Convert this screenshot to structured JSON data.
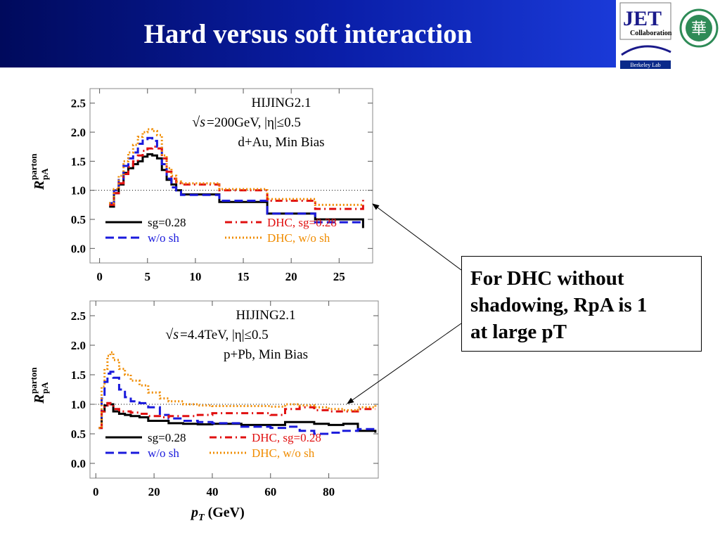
{
  "slide": {
    "title": "Hard versus soft interaction",
    "callout_lines": [
      "For DHC without",
      "shadowing, RpA is 1",
      "at large pT"
    ],
    "x_axis_title_main": "p",
    "x_axis_title_sub": "T",
    "x_axis_title_unit": " (GeV)",
    "y_axis_label": {
      "R": "R",
      "sup": "parton",
      "sub": "pA"
    },
    "logos": {
      "jet_name": "JET",
      "jet_sub": "Collaboration",
      "berkeley": "Berkeley Lab",
      "ccnu_char": "華"
    }
  },
  "colors": {
    "header_dark": "#000a5c",
    "black": "#000000",
    "blue": "#1a1adc",
    "red": "#e01010",
    "orange": "#f08c00"
  },
  "chart_data": [
    {
      "type": "line",
      "title_lines": [
        "HIJING2.1",
        "=200GeV, |η|≤0.5",
        "d+Au, Min Bias"
      ],
      "sqrt_symbol": "√s",
      "xlabel": "",
      "ylabel": "R_pA^parton",
      "xlim": [
        -1,
        28.5
      ],
      "ylim": [
        -0.25,
        2.75
      ],
      "x_ticks": [
        0,
        5,
        10,
        15,
        20,
        25
      ],
      "y_ticks": [
        0.0,
        0.5,
        1.0,
        1.5,
        2.0,
        2.5
      ],
      "y_tick_labels": [
        "0.0",
        "0.5",
        "1.0",
        "1.5",
        "2.0",
        "2.5"
      ],
      "reference_line": 1.0,
      "legend": [
        {
          "label": "sg=0.28",
          "color": "#000000",
          "style": "solid",
          "pos": "left-1"
        },
        {
          "label": "w/o sh",
          "color": "#1a1adc",
          "style": "dashed",
          "pos": "left-2"
        },
        {
          "label": "DHC, sg=0.28",
          "color": "#e01010",
          "style": "dashdot",
          "pos": "right-1"
        },
        {
          "label": "DHC, w/o sh",
          "color": "#f08c00",
          "style": "dotted",
          "pos": "right-2"
        }
      ],
      "series": [
        {
          "name": "sg=0.28",
          "color": "#000000",
          "style": "solid",
          "width": 3,
          "x": [
            1,
            1.5,
            2,
            2.5,
            3,
            3.5,
            4,
            4.5,
            5,
            5.5,
            6,
            6.5,
            7,
            7.5,
            8,
            8.5,
            10,
            12.5,
            17.5,
            22.5,
            27.5
          ],
          "y": [
            0.72,
            0.95,
            1.1,
            1.3,
            1.38,
            1.45,
            1.5,
            1.58,
            1.62,
            1.6,
            1.55,
            1.35,
            1.18,
            1.1,
            1.0,
            0.93,
            0.93,
            0.8,
            0.6,
            0.5,
            0.35
          ]
        },
        {
          "name": "w/o sh",
          "color": "#1a1adc",
          "style": "dashed",
          "width": 3,
          "x": [
            1,
            1.5,
            2,
            2.5,
            3,
            3.5,
            4,
            4.5,
            5,
            5.5,
            6,
            6.5,
            7,
            7.5,
            8,
            8.5,
            10,
            12.5,
            17.5,
            22.5,
            27.5
          ],
          "y": [
            0.78,
            1.0,
            1.2,
            1.42,
            1.55,
            1.65,
            1.8,
            1.88,
            1.9,
            1.85,
            1.75,
            1.45,
            1.2,
            1.05,
            0.98,
            0.92,
            0.92,
            0.82,
            0.6,
            0.45,
            0.42
          ]
        },
        {
          "name": "DHC, sg=0.28",
          "color": "#e01010",
          "style": "dashdot",
          "width": 3,
          "x": [
            1,
            1.5,
            2,
            2.5,
            3,
            3.5,
            4,
            4.5,
            5,
            5.5,
            6,
            6.5,
            7,
            7.5,
            8,
            8.5,
            10,
            12.5,
            17.5,
            22.5,
            27.5
          ],
          "y": [
            0.75,
            0.95,
            1.12,
            1.28,
            1.4,
            1.5,
            1.6,
            1.68,
            1.72,
            1.75,
            1.72,
            1.55,
            1.32,
            1.2,
            1.12,
            1.1,
            1.1,
            1.0,
            0.82,
            0.68,
            0.88
          ]
        },
        {
          "name": "DHC, w/o sh",
          "color": "#f08c00",
          "style": "dotted",
          "width": 3,
          "x": [
            1,
            1.5,
            2,
            2.5,
            3,
            3.5,
            4,
            4.5,
            5,
            5.5,
            6,
            6.5,
            7,
            7.5,
            8,
            8.5,
            10,
            12.5,
            17.5,
            22.5,
            27.5
          ],
          "y": [
            0.78,
            1.02,
            1.25,
            1.5,
            1.65,
            1.78,
            1.92,
            2.0,
            2.05,
            2.02,
            1.95,
            1.6,
            1.38,
            1.25,
            1.15,
            1.12,
            1.12,
            1.02,
            0.85,
            0.75,
            0.75
          ]
        }
      ]
    },
    {
      "type": "line",
      "title_lines": [
        "HIJING2.1",
        "=4.4TeV, |η|≤0.5",
        "p+Pb, Min Bias"
      ],
      "sqrt_symbol": "√s",
      "xlabel": "p_T (GeV)",
      "ylabel": "R_pA^parton",
      "xlim": [
        -2,
        97
      ],
      "ylim": [
        -0.25,
        2.75
      ],
      "x_ticks": [
        0,
        20,
        40,
        60,
        80
      ],
      "y_ticks": [
        0.0,
        0.5,
        1.0,
        1.5,
        2.0,
        2.5
      ],
      "y_tick_labels": [
        "0.0",
        "0.5",
        "1.0",
        "1.5",
        "2.0",
        "2.5"
      ],
      "reference_line": 1.0,
      "legend": [
        {
          "label": "sg=0.28",
          "color": "#000000",
          "style": "solid",
          "pos": "left-1"
        },
        {
          "label": "w/o sh",
          "color": "#1a1adc",
          "style": "dashed",
          "pos": "left-2"
        },
        {
          "label": "DHC, sg=0.28",
          "color": "#e01010",
          "style": "dashdot",
          "pos": "right-1"
        },
        {
          "label": "DHC, w/o sh",
          "color": "#f08c00",
          "style": "dotted",
          "pos": "right-2"
        }
      ],
      "series": [
        {
          "name": "sg=0.28",
          "color": "#000000",
          "style": "solid",
          "width": 3,
          "x": [
            1,
            2,
            3,
            4,
            5,
            6,
            8,
            10,
            12,
            15,
            18,
            22,
            25,
            30,
            35,
            40,
            50,
            60,
            65,
            70,
            75,
            80,
            85,
            90,
            96
          ],
          "y": [
            0.6,
            0.88,
            0.98,
            1.02,
            1.0,
            0.88,
            0.84,
            0.82,
            0.8,
            0.78,
            0.72,
            0.72,
            0.68,
            0.67,
            0.66,
            0.67,
            0.65,
            0.65,
            0.7,
            0.7,
            0.67,
            0.65,
            0.67,
            0.55,
            0.52
          ]
        },
        {
          "name": "w/o sh",
          "color": "#1a1adc",
          "style": "dashed",
          "width": 3,
          "x": [
            1,
            2,
            3,
            4,
            5,
            6,
            8,
            10,
            12,
            15,
            18,
            22,
            25,
            30,
            35,
            40,
            50,
            60,
            65,
            70,
            75,
            80,
            85,
            90,
            96
          ],
          "y": [
            0.6,
            1.1,
            1.38,
            1.52,
            1.55,
            1.45,
            1.25,
            1.12,
            1.05,
            1.02,
            0.95,
            0.82,
            0.76,
            0.72,
            0.7,
            0.68,
            0.62,
            0.6,
            0.62,
            0.55,
            0.5,
            0.52,
            0.55,
            0.58,
            0.6
          ]
        },
        {
          "name": "DHC, sg=0.28",
          "color": "#e01010",
          "style": "dashdot",
          "width": 3,
          "x": [
            1,
            2,
            3,
            4,
            5,
            6,
            8,
            10,
            12,
            15,
            18,
            22,
            25,
            30,
            35,
            40,
            50,
            60,
            65,
            70,
            75,
            80,
            85,
            90,
            96
          ],
          "y": [
            0.6,
            0.88,
            0.98,
            1.02,
            1.0,
            0.92,
            0.88,
            0.88,
            0.86,
            0.84,
            0.8,
            0.78,
            0.8,
            0.8,
            0.82,
            0.85,
            0.85,
            0.82,
            0.92,
            0.95,
            0.9,
            0.88,
            0.88,
            0.92,
            0.92
          ]
        },
        {
          "name": "DHC, w/o sh",
          "color": "#f08c00",
          "style": "dotted",
          "width": 3,
          "x": [
            1,
            2,
            3,
            4,
            5,
            6,
            8,
            10,
            12,
            15,
            18,
            22,
            25,
            30,
            35,
            40,
            50,
            60,
            65,
            70,
            75,
            80,
            85,
            90,
            96
          ],
          "y": [
            0.6,
            1.3,
            1.6,
            1.82,
            1.88,
            1.75,
            1.6,
            1.5,
            1.4,
            1.32,
            1.2,
            1.1,
            1.05,
            1.0,
            0.98,
            0.97,
            0.97,
            0.96,
            1.0,
            0.98,
            0.95,
            0.92,
            0.9,
            0.95,
            1.0
          ]
        }
      ]
    }
  ]
}
